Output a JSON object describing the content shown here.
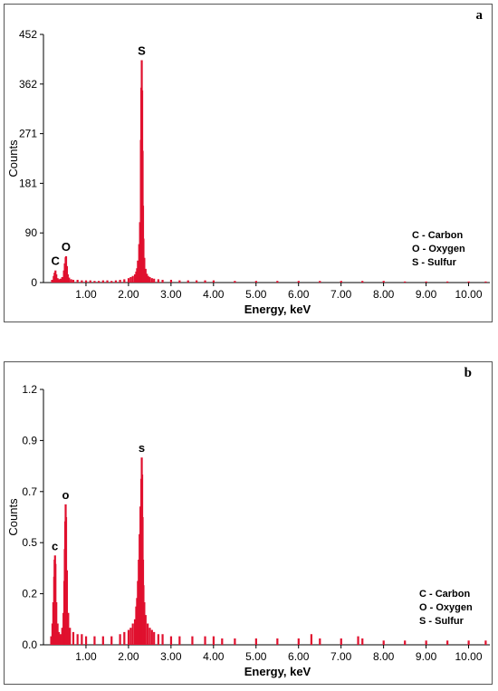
{
  "chart_data": [
    {
      "type": "bar",
      "panel_label": "a",
      "xlabel": "Energy, keV",
      "ylabel": "Counts",
      "xlim": [
        0,
        10.5
      ],
      "ylim": [
        0,
        452
      ],
      "x_ticks": [
        "1.00",
        "2.00",
        "3.00",
        "4.00",
        "5.00",
        "6.00",
        "7.00",
        "8.00",
        "9.00",
        "10.00"
      ],
      "y_ticks": [
        "0",
        "90",
        "181",
        "271",
        "362",
        "452"
      ],
      "bar_color": "#e0102e",
      "peaks": [
        {
          "label": "C",
          "energy_kev": 0.28,
          "counts": 22
        },
        {
          "label": "O",
          "energy_kev": 0.53,
          "counts": 48
        },
        {
          "label": "S",
          "energy_kev": 2.31,
          "counts": 405
        }
      ],
      "legend": [
        "C - Carbon",
        "O - Oxygen",
        "S - Sulfur"
      ],
      "legend_position": "right",
      "series": [
        {
          "energy_kev": [
            0.2,
            0.24,
            0.26,
            0.28,
            0.3,
            0.33,
            0.36,
            0.4,
            0.44,
            0.48,
            0.5,
            0.52,
            0.53,
            0.55,
            0.57,
            0.6,
            0.65,
            0.7,
            0.8,
            0.9,
            1.0,
            1.1,
            1.2,
            1.3,
            1.4,
            1.5,
            1.6,
            1.7,
            1.8,
            1.9,
            2.0,
            2.05,
            2.1,
            2.15,
            2.18,
            2.2,
            2.22,
            2.25,
            2.27,
            2.29,
            2.3,
            2.31,
            2.32,
            2.33,
            2.34,
            2.35,
            2.37,
            2.4,
            2.43,
            2.46,
            2.5,
            2.55,
            2.6,
            2.7,
            2.8,
            3.0,
            3.2,
            3.4,
            3.6,
            3.8,
            4.0,
            4.5,
            5.0,
            5.5,
            6.0,
            6.5,
            7.0,
            7.5,
            8.0,
            8.5,
            9.0,
            9.5,
            10.0,
            10.4
          ],
          "counts": [
            5,
            12,
            18,
            22,
            15,
            8,
            6,
            7,
            10,
            22,
            35,
            46,
            48,
            30,
            15,
            9,
            6,
            5,
            5,
            4,
            4,
            4,
            3,
            3,
            4,
            4,
            3,
            4,
            5,
            6,
            8,
            10,
            12,
            15,
            20,
            26,
            40,
            70,
            110,
            260,
            355,
            405,
            350,
            240,
            140,
            80,
            45,
            25,
            16,
            12,
            10,
            8,
            7,
            6,
            5,
            5,
            4,
            4,
            4,
            4,
            4,
            3,
            3,
            3,
            3,
            3,
            3,
            3,
            3,
            2,
            2,
            2,
            2,
            2
          ]
        }
      ]
    },
    {
      "type": "bar",
      "panel_label": "b",
      "xlabel": "Energy, keV",
      "ylabel": "Counts",
      "xlim": [
        0,
        10.5
      ],
      "ylim": [
        0,
        1.2
      ],
      "x_ticks": [
        "1.00",
        "2.00",
        "3.00",
        "4.00",
        "5.00",
        "6.00",
        "7.00",
        "8.00",
        "9.00",
        "10.00"
      ],
      "y_ticks": [
        "0.0",
        "0.2",
        "0.5",
        "0.7",
        "0.9",
        "1.2"
      ],
      "bar_color": "#e0102e",
      "peaks": [
        {
          "label": "c",
          "energy_kev": 0.27,
          "counts": 0.42
        },
        {
          "label": "o",
          "energy_kev": 0.52,
          "counts": 0.66
        },
        {
          "label": "s",
          "energy_kev": 2.31,
          "counts": 0.88
        }
      ],
      "legend": [
        "C - Carbon",
        "O - Oxygen",
        "S - Sulfur"
      ],
      "legend_position": "right",
      "series": [
        {
          "energy_kev": [
            0.18,
            0.21,
            0.23,
            0.25,
            0.26,
            0.27,
            0.28,
            0.3,
            0.33,
            0.36,
            0.4,
            0.44,
            0.47,
            0.49,
            0.5,
            0.51,
            0.52,
            0.53,
            0.55,
            0.58,
            0.62,
            0.7,
            0.8,
            0.9,
            1.0,
            1.2,
            1.4,
            1.6,
            1.8,
            1.9,
            2.0,
            2.05,
            2.1,
            2.15,
            2.18,
            2.2,
            2.22,
            2.24,
            2.26,
            2.28,
            2.3,
            2.31,
            2.32,
            2.33,
            2.34,
            2.35,
            2.37,
            2.4,
            2.45,
            2.5,
            2.55,
            2.6,
            2.7,
            2.8,
            3.0,
            3.2,
            3.5,
            3.8,
            4.0,
            4.2,
            4.5,
            5.0,
            5.5,
            6.0,
            6.3,
            6.5,
            7.0,
            7.4,
            7.5,
            8.0,
            8.5,
            9.0,
            9.5,
            10.0,
            10.4
          ],
          "counts": [
            0.04,
            0.1,
            0.2,
            0.32,
            0.4,
            0.42,
            0.38,
            0.2,
            0.1,
            0.06,
            0.05,
            0.08,
            0.15,
            0.3,
            0.45,
            0.58,
            0.66,
            0.6,
            0.35,
            0.15,
            0.08,
            0.06,
            0.05,
            0.05,
            0.04,
            0.04,
            0.04,
            0.04,
            0.05,
            0.06,
            0.07,
            0.08,
            0.1,
            0.12,
            0.18,
            0.22,
            0.3,
            0.4,
            0.52,
            0.65,
            0.78,
            0.88,
            0.8,
            0.6,
            0.4,
            0.28,
            0.2,
            0.14,
            0.1,
            0.08,
            0.07,
            0.06,
            0.05,
            0.05,
            0.04,
            0.04,
            0.04,
            0.04,
            0.04,
            0.03,
            0.03,
            0.03,
            0.03,
            0.03,
            0.05,
            0.03,
            0.03,
            0.04,
            0.03,
            0.02,
            0.02,
            0.02,
            0.02,
            0.02,
            0.02
          ]
        }
      ]
    }
  ]
}
